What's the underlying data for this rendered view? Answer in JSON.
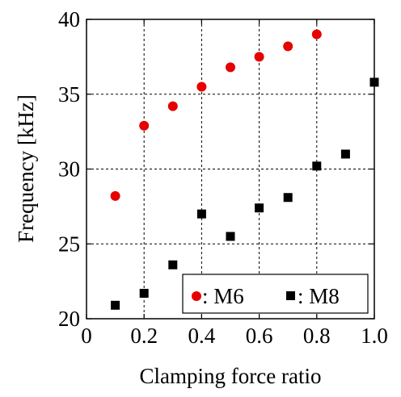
{
  "chart_data": {
    "type": "scatter",
    "xlabel": "Clamping force ratio",
    "ylabel": "Frequency [kHz]",
    "xlim": [
      0,
      1.0
    ],
    "ylim": [
      20,
      40
    ],
    "x_ticks": [
      0,
      0.2,
      0.4,
      0.6,
      0.8,
      1.0
    ],
    "x_tick_labels": [
      "0",
      "0.2",
      "0.4",
      "0.6",
      "0.8",
      "1.0"
    ],
    "y_ticks": [
      20,
      25,
      30,
      35,
      40
    ],
    "y_tick_labels": [
      "20",
      "25",
      "30",
      "35",
      "40"
    ],
    "grid": true,
    "legend_position": "bottom-right",
    "series": [
      {
        "name": ": M6",
        "marker": "circle",
        "color": "#e60000",
        "points": [
          {
            "x": 0.1,
            "y": 28.2
          },
          {
            "x": 0.2,
            "y": 32.9
          },
          {
            "x": 0.3,
            "y": 34.2
          },
          {
            "x": 0.4,
            "y": 35.5
          },
          {
            "x": 0.5,
            "y": 36.8
          },
          {
            "x": 0.6,
            "y": 37.5
          },
          {
            "x": 0.7,
            "y": 38.2
          },
          {
            "x": 0.8,
            "y": 39.0
          }
        ]
      },
      {
        "name": ": M8",
        "marker": "square",
        "color": "#000000",
        "points": [
          {
            "x": 0.1,
            "y": 20.9
          },
          {
            "x": 0.2,
            "y": 21.7
          },
          {
            "x": 0.3,
            "y": 23.6
          },
          {
            "x": 0.4,
            "y": 27.0
          },
          {
            "x": 0.5,
            "y": 25.5
          },
          {
            "x": 0.6,
            "y": 27.4
          },
          {
            "x": 0.7,
            "y": 28.1
          },
          {
            "x": 0.8,
            "y": 30.2
          },
          {
            "x": 0.9,
            "y": 31.0
          },
          {
            "x": 1.0,
            "y": 35.8
          }
        ]
      }
    ]
  }
}
